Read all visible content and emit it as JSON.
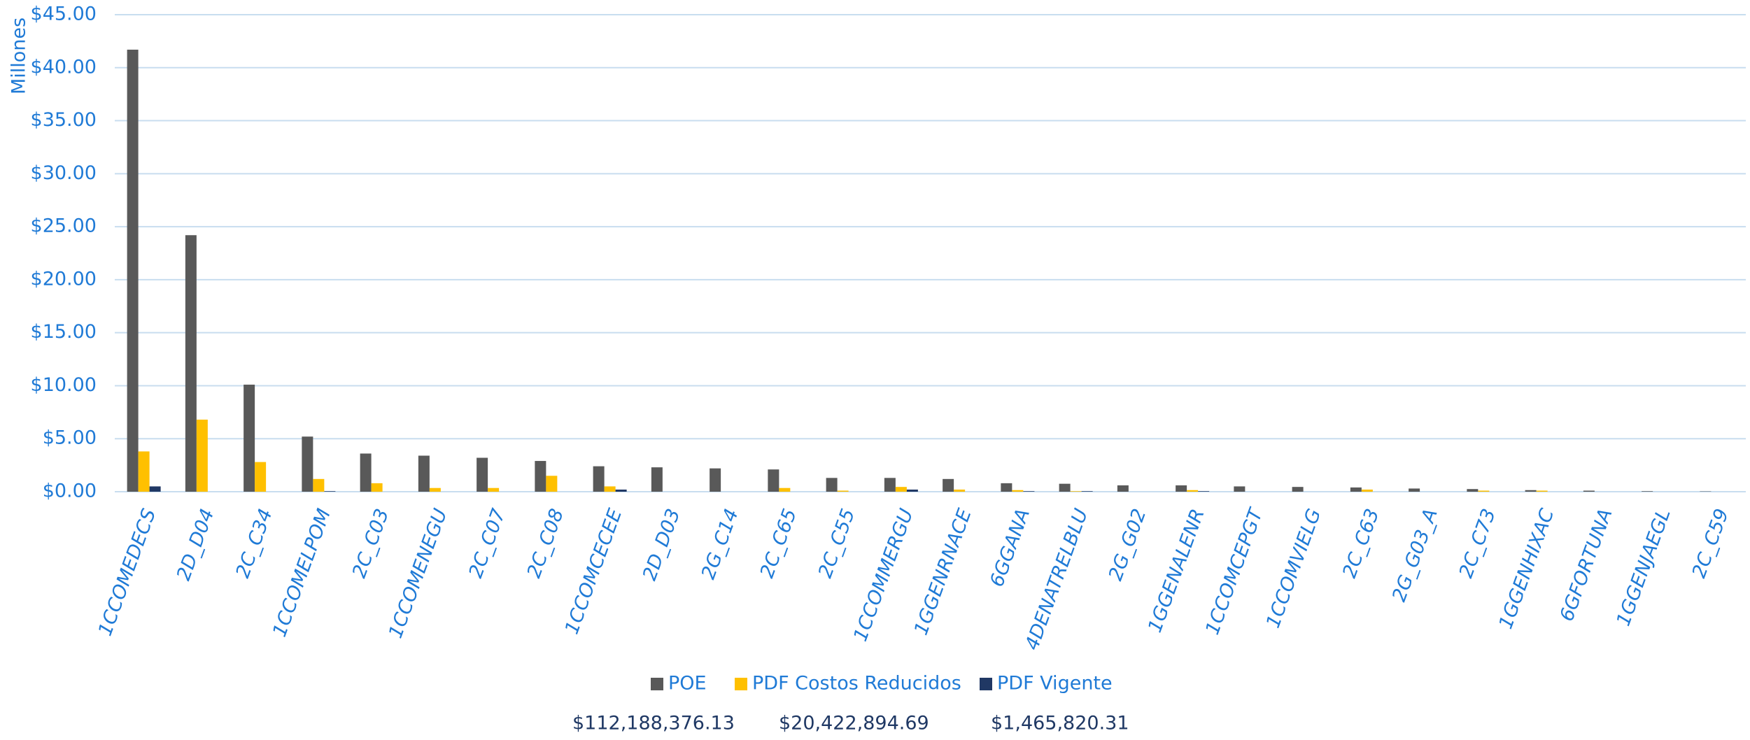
{
  "chart_data": {
    "type": "bar",
    "y_axis_label": "Millones",
    "categories": [
      "1CCOMEDECS",
      "2D_D04",
      "2C_C34",
      "1CCOMELPOM",
      "2C_C03",
      "1CCOMENEGU",
      "2C_C07",
      "2C_C08",
      "1CCOMCECEE",
      "2D_D03",
      "2G_C14",
      "2C_C65",
      "2C_C55",
      "1CCOMMERGU",
      "1GGENRNACE",
      "6GGANA",
      "4DENATRELBLU",
      "2G_G02",
      "1GGENALENR",
      "1CCOMCEPGT",
      "1CCOMVIELG",
      "2C_C63",
      "2G_G03_A",
      "2C_C73",
      "1GGENHIXAC",
      "6GFORTUNA",
      "1GGENJAEGL",
      "2C_C59"
    ],
    "series": [
      {
        "name": "POE",
        "color": "#595959",
        "values": [
          41.7,
          24.2,
          10.1,
          5.2,
          3.6,
          3.4,
          3.2,
          2.9,
          2.4,
          2.3,
          2.2,
          2.1,
          1.3,
          1.3,
          1.2,
          0.8,
          0.75,
          0.6,
          0.6,
          0.5,
          0.45,
          0.4,
          0.3,
          0.25,
          0.15,
          0.1,
          0.05,
          0.03
        ]
      },
      {
        "name": "PDF Costos Reducidos",
        "color": "#ffc000",
        "values": [
          3.8,
          6.8,
          2.8,
          1.2,
          0.8,
          0.35,
          0.35,
          1.5,
          0.5,
          0,
          0,
          0.35,
          0.1,
          0.45,
          0.2,
          0.15,
          0.05,
          0,
          0.15,
          0,
          0,
          0.2,
          0,
          0.1,
          0.1,
          0,
          0,
          0
        ]
      },
      {
        "name": "PDF Vigente",
        "color": "#203864",
        "values": [
          0.5,
          0,
          0,
          0.05,
          0,
          0,
          0,
          0,
          0.2,
          0,
          0,
          0,
          0,
          0.2,
          0,
          0.05,
          0.05,
          0,
          0.05,
          0,
          0,
          0,
          0,
          0,
          0,
          0,
          0,
          0
        ]
      }
    ],
    "totals": [
      "$112,188,376.13",
      "$20,422,894.69",
      "$1,465,820.31"
    ],
    "ylim": [
      0,
      45
    ],
    "yticks": [
      {
        "value": 0,
        "label": "$0.00"
      },
      {
        "value": 5,
        "label": "$5.00"
      },
      {
        "value": 10,
        "label": "$10.00"
      },
      {
        "value": 15,
        "label": "$15.00"
      },
      {
        "value": 20,
        "label": "$20.00"
      },
      {
        "value": 25,
        "label": "$25.00"
      },
      {
        "value": 30,
        "label": "$30.00"
      },
      {
        "value": 35,
        "label": "$35.00"
      },
      {
        "value": 40,
        "label": "$40.00"
      },
      {
        "value": 45,
        "label": "$45.00"
      }
    ],
    "grid": true
  }
}
